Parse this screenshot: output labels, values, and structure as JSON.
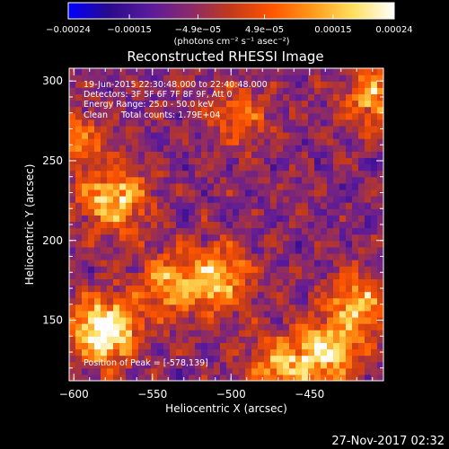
{
  "chart_data": {
    "type": "heatmap",
    "title": "Reconstructed RHESSI Image",
    "xlabel": "Heliocentric X (arcsec)",
    "ylabel": "Heliocentric Y (arcsec)",
    "xlim": [
      -603,
      -403
    ],
    "ylim": [
      112,
      308
    ],
    "x_ticks": [
      -600,
      -550,
      -500,
      -450
    ],
    "y_ticks": [
      150,
      200,
      250,
      300
    ],
    "x_tick_labels": [
      "−600",
      "−550",
      "−500",
      "−450"
    ],
    "y_tick_labels": [
      "150",
      "200",
      "250",
      "300"
    ],
    "colorbar": {
      "range": [
        -0.00024,
        0.00024
      ],
      "ticks": [
        -0.00024,
        -0.00015,
        -4.9e-05,
        4.9e-05,
        0.00015,
        0.00024
      ],
      "tick_labels": [
        "−0.00024",
        "−0.00015",
        "−4.9e−05",
        "4.9e−05",
        "0.00015",
        "0.00024"
      ],
      "unit_label": "(photons cm⁻² s⁻¹ asec⁻²)",
      "colors": [
        "#0000ff",
        "#2a0a8c",
        "#5a1a9c",
        "#8a2a6a",
        "#c23a1a",
        "#ff5500",
        "#ff9a1a",
        "#ffe060",
        "#ffffff"
      ]
    },
    "annotations": [
      "19-Jun-2015 22:30:48.000 to 22:40:48.000",
      "Detectors: 3F 5F 6F 7F 8F 9F, Att 0",
      "Energy Range: 25.0 - 50.0 keV",
      "Clean     Total counts: 1.79E+04"
    ],
    "peak_label": "Position of Peak = [-578,139]",
    "peak": [
      -578,
      139
    ],
    "hotspots": [
      {
        "x": -580,
        "y": 144,
        "amplitude": 1.0
      },
      {
        "x": -574,
        "y": 225,
        "amplitude": 0.72
      },
      {
        "x": -540,
        "y": 172,
        "amplitude": 0.5
      },
      {
        "x": -508,
        "y": 176,
        "amplitude": 0.65
      },
      {
        "x": -440,
        "y": 130,
        "amplitude": 0.75
      },
      {
        "x": -418,
        "y": 160,
        "amplitude": 0.6
      },
      {
        "x": -410,
        "y": 290,
        "amplitude": 0.55
      },
      {
        "x": -470,
        "y": 120,
        "amplitude": 0.55
      },
      {
        "x": -496,
        "y": 278,
        "amplitude": 0.35
      },
      {
        "x": -600,
        "y": 262,
        "amplitude": 0.4
      }
    ],
    "grid": false
  },
  "footer": {
    "timestamp": "27-Nov-2017 02:32"
  }
}
